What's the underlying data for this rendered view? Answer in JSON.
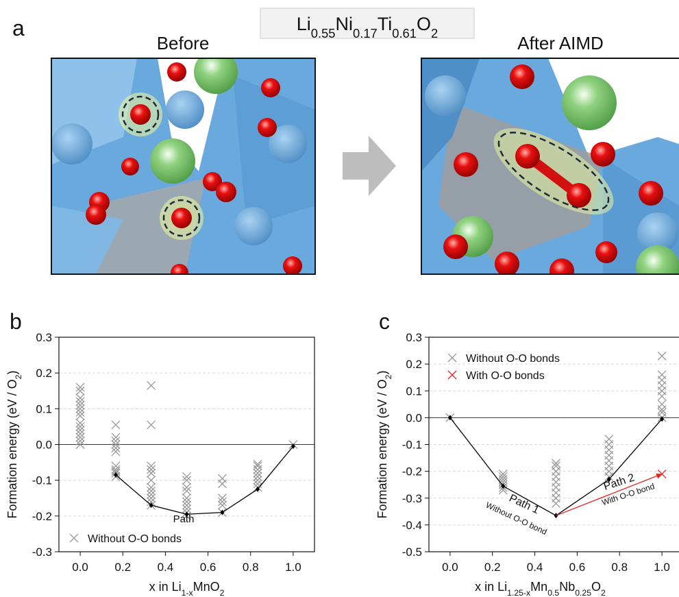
{
  "panel_labels": [
    "a",
    "b",
    "c"
  ],
  "formula": [
    "Li",
    "0.55",
    "Ni",
    "0.17",
    "Ti",
    "0.61",
    "O",
    "2"
  ],
  "before_title": "Before",
  "after_title": "After AIMD",
  "chart_data": [
    {
      "type": "scatter",
      "ylabel": [
        "Formation energy (eV / O",
        "2",
        ")"
      ],
      "xlabel": [
        "x in Li",
        "1-x",
        "MnO",
        "2"
      ],
      "xlim": [
        -0.1,
        1.1
      ],
      "ylim": [
        -0.3,
        0.3
      ],
      "xticks": [
        {
          "value": 0,
          "label": "0.0"
        },
        0.2,
        0.4,
        0.6,
        0.8,
        {
          "value": 1,
          "label": "1.0"
        }
      ],
      "yticks": [
        -0.3,
        -0.2,
        -0.1,
        {
          "value": 0,
          "label": "0.0"
        },
        0.1,
        0.2,
        0.3
      ],
      "grid": true,
      "reference_line": 0,
      "legend": "lower left",
      "annotations": [
        "Path"
      ],
      "series": [
        {
          "name": "Without O-O bonds",
          "type": "scatter",
          "color": "#999999",
          "x": [
            0,
            0,
            0,
            0,
            0,
            0,
            0,
            0,
            0,
            0,
            0,
            0,
            0,
            0,
            0,
            0.167,
            0.167,
            0.167,
            0.167,
            0.167,
            0.167,
            0.167,
            0.167,
            0.167,
            0.167,
            0.167,
            0.333,
            0.333,
            0.333,
            0.333,
            0.333,
            0.333,
            0.333,
            0.333,
            0.333,
            0.333,
            0.333,
            0.333,
            0.5,
            0.5,
            0.5,
            0.5,
            0.5,
            0.5,
            0.5,
            0.5,
            0.5,
            0.5,
            0.667,
            0.667,
            0.667,
            0.667,
            0.667,
            0.667,
            0.833,
            0.833,
            0.833,
            0.833,
            0.833,
            0.833,
            0.833,
            0.833,
            1
          ],
          "values": [
            0.16,
            0.15,
            0.13,
            0.12,
            0.11,
            0.1,
            0.09,
            0.08,
            0.06,
            0.05,
            0.04,
            0.03,
            0.02,
            0.01,
            0,
            0.055,
            0.02,
            0.01,
            0,
            -0.01,
            -0.02,
            -0.06,
            -0.07,
            -0.075,
            -0.08,
            -0.09,
            0.165,
            0.055,
            -0.06,
            -0.07,
            -0.08,
            -0.1,
            -0.12,
            -0.13,
            -0.14,
            -0.15,
            -0.16,
            -0.17,
            -0.09,
            -0.1,
            -0.12,
            -0.13,
            -0.15,
            -0.16,
            -0.17,
            -0.18,
            -0.19,
            -0.2,
            -0.095,
            -0.11,
            -0.15,
            -0.16,
            -0.17,
            -0.19,
            -0.055,
            -0.06,
            -0.07,
            -0.08,
            -0.09,
            -0.1,
            -0.11,
            -0.12,
            0
          ]
        },
        {
          "type": "line",
          "color": "#000000",
          "x": [
            0.167,
            0.333,
            0.5,
            0.667,
            0.833,
            1
          ],
          "values": [
            -0.085,
            -0.17,
            -0.195,
            -0.19,
            -0.125,
            -0.005
          ]
        }
      ]
    },
    {
      "type": "scatter",
      "ylabel": [
        "Formation energy (eV / O",
        "2",
        ")"
      ],
      "xlabel": [
        "x in Li",
        "1.25-x",
        "Mn",
        "0.5",
        "Nb",
        "0.25",
        "O",
        "2"
      ],
      "xlim": [
        -0.1,
        1.1
      ],
      "ylim": [
        -0.5,
        0.3
      ],
      "xticks": [
        {
          "value": 0,
          "label": "0.0"
        },
        0.2,
        0.4,
        0.6,
        0.8,
        {
          "value": 1,
          "label": "1.0"
        }
      ],
      "yticks": [
        -0.5,
        -0.4,
        -0.3,
        -0.2,
        -0.1,
        {
          "value": 0,
          "label": "0.0"
        },
        0.1,
        0.2,
        0.3
      ],
      "grid": true,
      "reference_line": 0,
      "legend": "upper left",
      "annotations": [
        "Path 1",
        "Without O-O bond",
        "Path 2",
        "With O-O bond"
      ],
      "series": [
        {
          "name": "Without O-O bonds",
          "type": "scatter",
          "color": "#999999",
          "x": [
            0,
            0.25,
            0.25,
            0.25,
            0.25,
            0.25,
            0.25,
            0.25,
            0.5,
            0.5,
            0.5,
            0.5,
            0.5,
            0.5,
            0.5,
            0.5,
            0.5,
            0.75,
            0.75,
            0.75,
            0.75,
            0.75,
            0.75,
            0.75,
            0.75,
            1,
            1,
            1,
            1,
            1,
            1,
            1,
            1,
            1,
            1
          ],
          "values": [
            0,
            -0.21,
            -0.22,
            -0.23,
            -0.24,
            -0.25,
            -0.26,
            -0.27,
            -0.17,
            -0.18,
            -0.2,
            -0.22,
            -0.24,
            -0.26,
            -0.28,
            -0.3,
            -0.32,
            -0.08,
            -0.1,
            -0.12,
            -0.14,
            -0.16,
            -0.18,
            -0.2,
            -0.22,
            0.23,
            0.16,
            0.14,
            0.12,
            0.1,
            0.08,
            0.05,
            0.03,
            0.02,
            0
          ]
        },
        {
          "name": "With O-O bonds",
          "type": "scatter",
          "color": "#e8231f",
          "x": [
            1
          ],
          "values": [
            -0.21
          ]
        },
        {
          "type": "line",
          "color": "#000000",
          "x": [
            0,
            0.25,
            0.5,
            0.75,
            1
          ],
          "values": [
            0,
            -0.255,
            -0.365,
            -0.23,
            -0.005
          ]
        },
        {
          "type": "line",
          "arrow": true,
          "color": "#e8231f",
          "x": [
            0.5,
            1
          ],
          "values": [
            -0.365,
            -0.21
          ]
        }
      ]
    }
  ]
}
